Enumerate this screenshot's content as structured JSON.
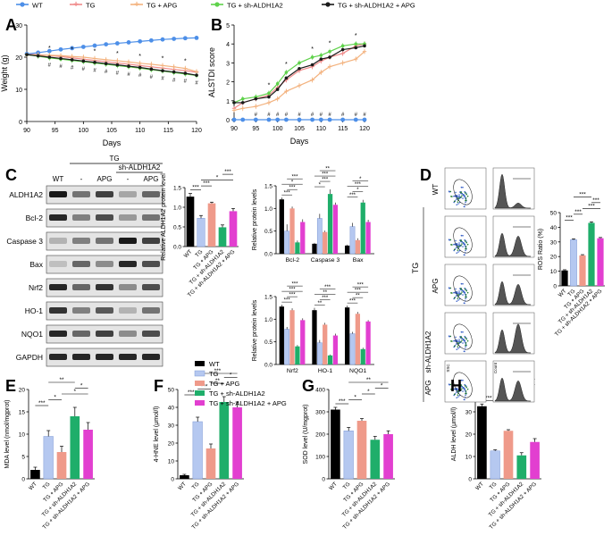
{
  "colors": {
    "wt": "#000000",
    "tg": "#b5c8f0",
    "apg": "#ef9a8a",
    "sh": "#1fae6a",
    "shapg": "#e23fd0",
    "lwt": "#4d8fe8",
    "ltg": "#f08a8a",
    "lapg": "#f3b27e",
    "lsh": "#5fd24b",
    "lshapg": "#1a1a1a"
  },
  "legend_top": [
    "WT",
    "TG",
    "TG + APG",
    "TG + sh-ALDH1A2",
    "TG + sh-ALDH1A2 + APG"
  ],
  "legend_bar": [
    "WT",
    "TG",
    "TG + APG",
    "TG + sh-ALDH1A2",
    "TG + sh-ALDH1A2 + APG"
  ],
  "panel_labels": {
    "a": "A",
    "b": "B",
    "c": "C",
    "d": "D",
    "e": "E",
    "f": "F",
    "g": "G",
    "h": "H"
  },
  "blot": {
    "header_tg": "TG",
    "header_sh": "sh-ALDH1A2",
    "lanes": [
      "WT",
      "-",
      "APG",
      "-",
      "APG"
    ],
    "rows": [
      "ALDH1A2",
      "Bcl-2",
      "Caspase 3",
      "Bax",
      "Nrf2",
      "HO-1",
      "NQO1",
      "GAPDH"
    ]
  },
  "flow": {
    "row_labels": [
      "WT",
      "",
      "APG",
      "",
      ""
    ],
    "tg_label": "TG",
    "sh_label": "sh-ALDH1A2",
    "apg_label": "APG",
    "axis_ssc": "SSC",
    "axis_count": "Count"
  },
  "chart_data": [
    {
      "id": "A",
      "type": "line",
      "title": "",
      "xlabel": "Days",
      "ylabel": "Weight (g)",
      "xlim": [
        90,
        120
      ],
      "ylim": [
        0,
        30
      ],
      "xticks": [
        "90",
        "95",
        "100",
        "105",
        "110",
        "115",
        "120"
      ],
      "yticks": [
        "0",
        "10",
        "20",
        "30"
      ],
      "x": [
        90,
        92,
        94,
        96,
        98,
        100,
        102,
        104,
        106,
        108,
        110,
        112,
        114,
        116,
        118,
        120
      ],
      "series": [
        {
          "name": "WT",
          "values": [
            21,
            21.4,
            21.9,
            22.4,
            22.8,
            23.2,
            23.6,
            24,
            24.3,
            24.6,
            24.9,
            25.2,
            25.5,
            25.7,
            25.9,
            26
          ]
        },
        {
          "name": "TG",
          "values": [
            20.8,
            20.8,
            20.5,
            20.2,
            19.8,
            19.4,
            19,
            18.6,
            18.2,
            17.8,
            17.4,
            17,
            16.6,
            16.2,
            15.8,
            15.3
          ]
        },
        {
          "name": "TG + APG",
          "values": [
            20.7,
            20.6,
            20.6,
            20.5,
            20.2,
            20,
            19.6,
            19.2,
            18.9,
            18.5,
            18.1,
            17.8,
            17.4,
            17,
            16.5,
            15.5
          ]
        },
        {
          "name": "TG + sh-ALDH1A2",
          "values": [
            20.8,
            20.3,
            19.8,
            19.4,
            19,
            18.6,
            18.2,
            17.8,
            17.4,
            17,
            16.6,
            16.1,
            15.7,
            15.2,
            14.8,
            14.3
          ]
        },
        {
          "name": "TG + sh-ALDH1A2 + APG",
          "values": [
            20.8,
            20.4,
            20,
            19.6,
            19.2,
            18.8,
            18.4,
            18,
            17.6,
            17.2,
            16.8,
            16.3,
            15.8,
            15.4,
            15,
            14.4
          ]
        }
      ],
      "annotations": [
        "*",
        "#"
      ]
    },
    {
      "id": "B",
      "type": "line",
      "title": "",
      "xlabel": "Days",
      "ylabel": "ALSTDI score",
      "xlim": [
        90,
        120
      ],
      "ylim": [
        0,
        5
      ],
      "xticks": [
        "90",
        "95",
        "100",
        "105",
        "110",
        "115",
        "120"
      ],
      "yticks": [
        "0",
        "1",
        "2",
        "3",
        "4",
        "5"
      ],
      "x": [
        90,
        92,
        95,
        98,
        100,
        102,
        105,
        108,
        110,
        112,
        115,
        118,
        120
      ],
      "series": [
        {
          "name": "WT",
          "values": [
            0,
            0,
            0,
            0,
            0,
            0,
            0,
            0,
            0,
            0,
            0,
            0,
            0
          ]
        },
        {
          "name": "TG",
          "values": [
            0.6,
            0.9,
            1.1,
            1.3,
            1.7,
            2.1,
            2.6,
            2.8,
            3.1,
            3.3,
            3.5,
            3.9,
            4
          ]
        },
        {
          "name": "TG + APG",
          "values": [
            0.5,
            0.6,
            0.7,
            0.9,
            1.1,
            1.5,
            1.8,
            2.1,
            2.5,
            2.8,
            3.0,
            3.2,
            3.6
          ]
        },
        {
          "name": "TG + sh-ALDH1A2",
          "values": [
            0.9,
            1.1,
            1.2,
            1.4,
            1.9,
            2.5,
            3.0,
            3.3,
            3.4,
            3.6,
            3.9,
            4.0,
            4.0
          ]
        },
        {
          "name": "TG + sh-ALDH1A2 + APG",
          "values": [
            0.9,
            0.9,
            1.1,
            1.2,
            1.6,
            2.2,
            2.7,
            2.9,
            3.2,
            3.3,
            3.7,
            3.8,
            3.9
          ]
        }
      ],
      "annotations": [
        "*",
        "#"
      ]
    },
    {
      "id": "C1",
      "type": "bar",
      "ylabel": "Relative ALDH1A2 protein level",
      "ylim": [
        0,
        1.5
      ],
      "yticks": [
        "0.0",
        "0.5",
        "1.0",
        "1.5"
      ],
      "categories": [
        "WT",
        "TG",
        "TG + APG",
        "TG + sh-ALDH1A2",
        "TG + sh-ALDH1A2 + APG"
      ],
      "values": [
        1.27,
        0.72,
        1.1,
        0.49,
        0.9
      ],
      "errors": [
        0.08,
        0.07,
        0.03,
        0.06,
        0.07
      ],
      "sig": [
        {
          "a": 0,
          "b": 1,
          "t": "***"
        },
        {
          "a": 1,
          "b": 2,
          "t": "***"
        },
        {
          "a": 1,
          "b": 4,
          "t": "*"
        },
        {
          "a": 3,
          "b": 4,
          "t": "***"
        }
      ]
    },
    {
      "id": "C2",
      "type": "bar",
      "ylabel": "Relative protein levels",
      "ylim": [
        0,
        1.5
      ],
      "yticks": [
        "0.0",
        "0.5",
        "1.0",
        "1.5"
      ],
      "categories": [
        "Bcl-2",
        "Caspase 3",
        "Bax"
      ],
      "series": [
        {
          "name": "WT",
          "values": [
            1.2,
            0.22,
            0.18
          ],
          "errors": [
            0.04,
            0.02,
            0.02
          ]
        },
        {
          "name": "TG",
          "values": [
            0.5,
            0.78,
            0.6
          ],
          "errors": [
            0.15,
            0.1,
            0.08
          ]
        },
        {
          "name": "TG + APG",
          "values": [
            1.0,
            0.48,
            0.3
          ],
          "errors": [
            0.04,
            0.03,
            0.04
          ]
        },
        {
          "name": "TG + sh-ALDH1A2",
          "values": [
            0.25,
            1.32,
            1.13
          ],
          "errors": [
            0.04,
            0.1,
            0.06
          ]
        },
        {
          "name": "TG + sh-ALDH1A2 + APG",
          "values": [
            0.7,
            1.08,
            0.7
          ],
          "errors": [
            0.06,
            0.05,
            0.05
          ]
        }
      ],
      "sig_labels": [
        "***",
        "***",
        "*",
        "***",
        "*",
        "***",
        "***",
        "**",
        "***",
        "*",
        "***",
        "*",
        "***",
        "**"
      ]
    },
    {
      "id": "C3",
      "type": "bar",
      "ylabel": "Relative protein levels",
      "ylim": [
        0,
        1.5
      ],
      "yticks": [
        "0.0",
        "0.5",
        "1.0",
        "1.5"
      ],
      "categories": [
        "Nrf2",
        "HO-1",
        "NQO1"
      ],
      "series": [
        {
          "name": "WT",
          "values": [
            1.28,
            1.2,
            1.26
          ],
          "errors": [
            0.04,
            0.05,
            0.04
          ]
        },
        {
          "name": "TG",
          "values": [
            0.78,
            0.48,
            0.68
          ],
          "errors": [
            0.05,
            0.06,
            0.04
          ]
        },
        {
          "name": "TG + APG",
          "values": [
            1.2,
            0.88,
            1.12
          ],
          "errors": [
            0.04,
            0.04,
            0.04
          ]
        },
        {
          "name": "TG + sh-ALDH1A2",
          "values": [
            0.4,
            0.2,
            0.34
          ],
          "errors": [
            0.03,
            0.02,
            0.03
          ]
        },
        {
          "name": "TG + sh-ALDH1A2 + APG",
          "values": [
            0.98,
            0.64,
            0.95
          ],
          "errors": [
            0.04,
            0.04,
            0.03
          ]
        }
      ],
      "sig_labels": [
        "***",
        "***",
        "***",
        "***",
        "**",
        "***",
        "**",
        "***",
        "***",
        "**",
        "***",
        "***",
        "**",
        "***"
      ]
    },
    {
      "id": "D",
      "type": "bar",
      "ylabel": "ROS Ratio (%)",
      "ylim": [
        0,
        50
      ],
      "yticks": [
        "0",
        "10",
        "20",
        "30",
        "40",
        "50"
      ],
      "categories": [
        "WT",
        "TG",
        "TG + APG",
        "TG + sh-ALDH1A2",
        "TG + sh-ALDH1A2 + APG"
      ],
      "values": [
        10.5,
        31.5,
        20.8,
        43,
        32.5
      ],
      "errors": [
        0.5,
        0.6,
        0.5,
        0.7,
        0.5
      ],
      "sig": [
        {
          "a": 0,
          "b": 1,
          "t": "***"
        },
        {
          "a": 1,
          "b": 2,
          "t": "***"
        },
        {
          "a": 2,
          "b": 4,
          "t": "***"
        },
        {
          "a": 3,
          "b": 4,
          "t": "***"
        },
        {
          "a": 1,
          "b": 3,
          "t": "***"
        }
      ]
    },
    {
      "id": "E",
      "type": "bar",
      "ylabel": "MDA level (nmol/mgprot)",
      "ylim": [
        0,
        20
      ],
      "yticks": [
        "0",
        "5",
        "10",
        "15",
        "20"
      ],
      "categories": [
        "WT",
        "TG",
        "TG + APG",
        "TG + sh-ALDH1A2",
        "TG + sh-ALDH1A2 + APG"
      ],
      "values": [
        2,
        9.5,
        6,
        14,
        11
      ],
      "errors": [
        0.6,
        1.3,
        1.3,
        2.0,
        1.6
      ],
      "sig": [
        {
          "a": 0,
          "b": 1,
          "t": "***"
        },
        {
          "a": 1,
          "b": 2,
          "t": "*"
        },
        {
          "a": 2,
          "b": 4,
          "t": "*"
        },
        {
          "a": 3,
          "b": 4,
          "t": "*"
        },
        {
          "a": 1,
          "b": 3,
          "t": "**"
        }
      ]
    },
    {
      "id": "F",
      "type": "bar",
      "ylabel": "4-HNE level (μmol/l)",
      "ylim": [
        0,
        50
      ],
      "yticks": [
        "0",
        "10",
        "20",
        "30",
        "40",
        "50"
      ],
      "categories": [
        "WT",
        "TG",
        "TG + APG",
        "TG + sh-ALDH1A2",
        "TG + sh-ALDH1A2 + APG"
      ],
      "values": [
        2,
        32,
        17,
        43,
        40
      ],
      "errors": [
        0.5,
        2.5,
        2.5,
        3,
        3
      ],
      "sig": [
        {
          "a": 0,
          "b": 1,
          "t": "***"
        },
        {
          "a": 1,
          "b": 2,
          "t": "***"
        },
        {
          "a": 2,
          "b": 3,
          "t": "**"
        },
        {
          "a": 3,
          "b": 4,
          "t": "*"
        },
        {
          "a": 1,
          "b": 4,
          "t": "***"
        }
      ]
    },
    {
      "id": "G",
      "type": "bar",
      "ylabel": "SOD level (U/mgprot)",
      "ylim": [
        0,
        400
      ],
      "yticks": [
        "0",
        "100",
        "200",
        "300",
        "400"
      ],
      "categories": [
        "WT",
        "TG",
        "TG + APG",
        "TG + sh-ALDH1A2",
        "TG + sh-ALDH1A2 + APG"
      ],
      "values": [
        310,
        215,
        260,
        175,
        200
      ],
      "errors": [
        10,
        15,
        10,
        15,
        15
      ],
      "sig": [
        {
          "a": 0,
          "b": 1,
          "t": "***"
        },
        {
          "a": 1,
          "b": 2,
          "t": "*"
        },
        {
          "a": 2,
          "b": 3,
          "t": "*"
        },
        {
          "a": 3,
          "b": 4,
          "t": "*"
        },
        {
          "a": 1,
          "b": 4,
          "t": "**"
        }
      ]
    },
    {
      "id": "H",
      "type": "bar",
      "ylabel": "ALDH level (μmol/l)",
      "ylim": [
        0,
        40
      ],
      "yticks": [
        "0",
        "10",
        "20",
        "30",
        "40"
      ],
      "categories": [
        "WT",
        "TG",
        "TG + APG",
        "TG + sh-ALDH1A2",
        "TG + sh-ALDH1A2 + APG"
      ],
      "values": [
        32.5,
        12.5,
        21.5,
        10.5,
        16.5
      ],
      "errors": [
        1.0,
        0.5,
        0.5,
        1.2,
        1.5
      ],
      "sig": [
        {
          "a": 0,
          "b": 1,
          "t": "***"
        },
        {
          "a": 1,
          "b": 2,
          "t": "***"
        },
        {
          "a": 2,
          "b": 3,
          "t": "*"
        },
        {
          "a": 1,
          "b": 4,
          "t": "*"
        },
        {
          "a": 3,
          "b": 4,
          "t": "**"
        }
      ]
    }
  ]
}
